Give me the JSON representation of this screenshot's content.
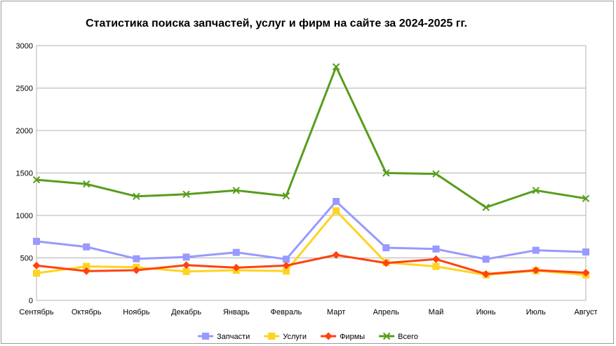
{
  "chart_data": {
    "type": "line",
    "title": "Статистика поиска запчастей, услуг и фирм на сайте за 2024-2025 гг.",
    "xlabel": "",
    "ylabel": "",
    "categories": [
      "Сентябрь",
      "Октябрь",
      "Ноябрь",
      "Декабрь",
      "Январь",
      "Февраль",
      "Март",
      "Апрель",
      "Май",
      "Июнь",
      "Июль",
      "Август"
    ],
    "ylim": [
      0,
      3000
    ],
    "yticks": [
      0,
      500,
      1000,
      1500,
      2000,
      2500,
      3000
    ],
    "grid": true,
    "legend_position": "bottom",
    "series": [
      {
        "name": "Запчасти",
        "color": "#9999ff",
        "marker": "square",
        "values": [
          695,
          630,
          490,
          510,
          565,
          485,
          1165,
          620,
          605,
          485,
          590,
          570
        ]
      },
      {
        "name": "Услуги",
        "color": "#ffd320",
        "marker": "square",
        "values": [
          320,
          400,
          390,
          340,
          355,
          345,
          1055,
          445,
          400,
          300,
          350,
          300
        ]
      },
      {
        "name": "Фирмы",
        "color": "#ff420e",
        "marker": "diamond",
        "values": [
          410,
          345,
          355,
          415,
          385,
          410,
          535,
          440,
          485,
          310,
          355,
          325
        ]
      },
      {
        "name": "Всего",
        "color": "#579d1c",
        "marker": "x",
        "values": [
          1420,
          1370,
          1225,
          1250,
          1295,
          1230,
          2750,
          1500,
          1490,
          1095,
          1295,
          1200
        ]
      }
    ]
  }
}
